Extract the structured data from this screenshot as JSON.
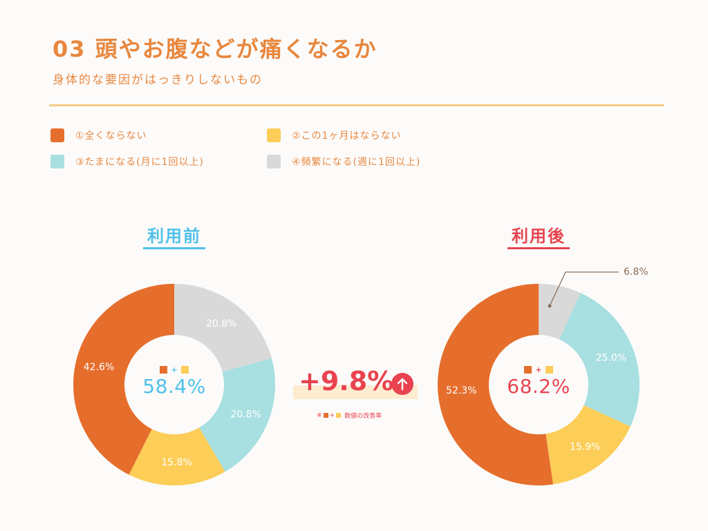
{
  "header": {
    "title": "03 頭やお腹などが痛くなるか",
    "subtitle": "身体的な要因がはっきりしないもの"
  },
  "legend": [
    {
      "label": "①全くならない",
      "color": "#e66e2c"
    },
    {
      "label": "②この1ヶ月はならない",
      "color": "#fccd57"
    },
    {
      "label": "③たまになる(月に1回以上)",
      "color": "#a8dfe0"
    },
    {
      "label": "④頻繁になる(週に1回以上)",
      "color": "#d9d9d9"
    }
  ],
  "colors": {
    "before_accent": "#4fc1e9",
    "after_accent": "#e8434f",
    "orange": "#e66e2c",
    "yellow": "#fccd57",
    "teal": "#a8dfe0",
    "gray": "#d9d9d9"
  },
  "improvement": {
    "value": "+9.8%",
    "note": "数値の改善率",
    "note_prefix": "※",
    "arrow_icon": "arrow-up-icon"
  },
  "chart_data": [
    {
      "type": "pie",
      "donut": true,
      "title": "利用前",
      "center_value": "58.4%",
      "series": [
        {
          "category": "①全くならない",
          "value": 42.6,
          "label": "42.6%"
        },
        {
          "category": "②この1ヶ月はならない",
          "value": 15.8,
          "label": "15.8%"
        },
        {
          "category": "③たまになる(月に1回以上)",
          "value": 20.8,
          "label": "20.8%"
        },
        {
          "category": "④頻繁になる(週に1回以上)",
          "value": 20.8,
          "label": "20.8%"
        }
      ]
    },
    {
      "type": "pie",
      "donut": true,
      "title": "利用後",
      "center_value": "68.2%",
      "series": [
        {
          "category": "①全くならない",
          "value": 52.3,
          "label": "52.3%"
        },
        {
          "category": "②この1ヶ月はならない",
          "value": 15.9,
          "label": "15.9%"
        },
        {
          "category": "③たまになる(月に1回以上)",
          "value": 25.0,
          "label": "25.0%"
        },
        {
          "category": "④頻繁になる(週に1回以上)",
          "value": 6.8,
          "label": "6.8%"
        }
      ]
    }
  ]
}
